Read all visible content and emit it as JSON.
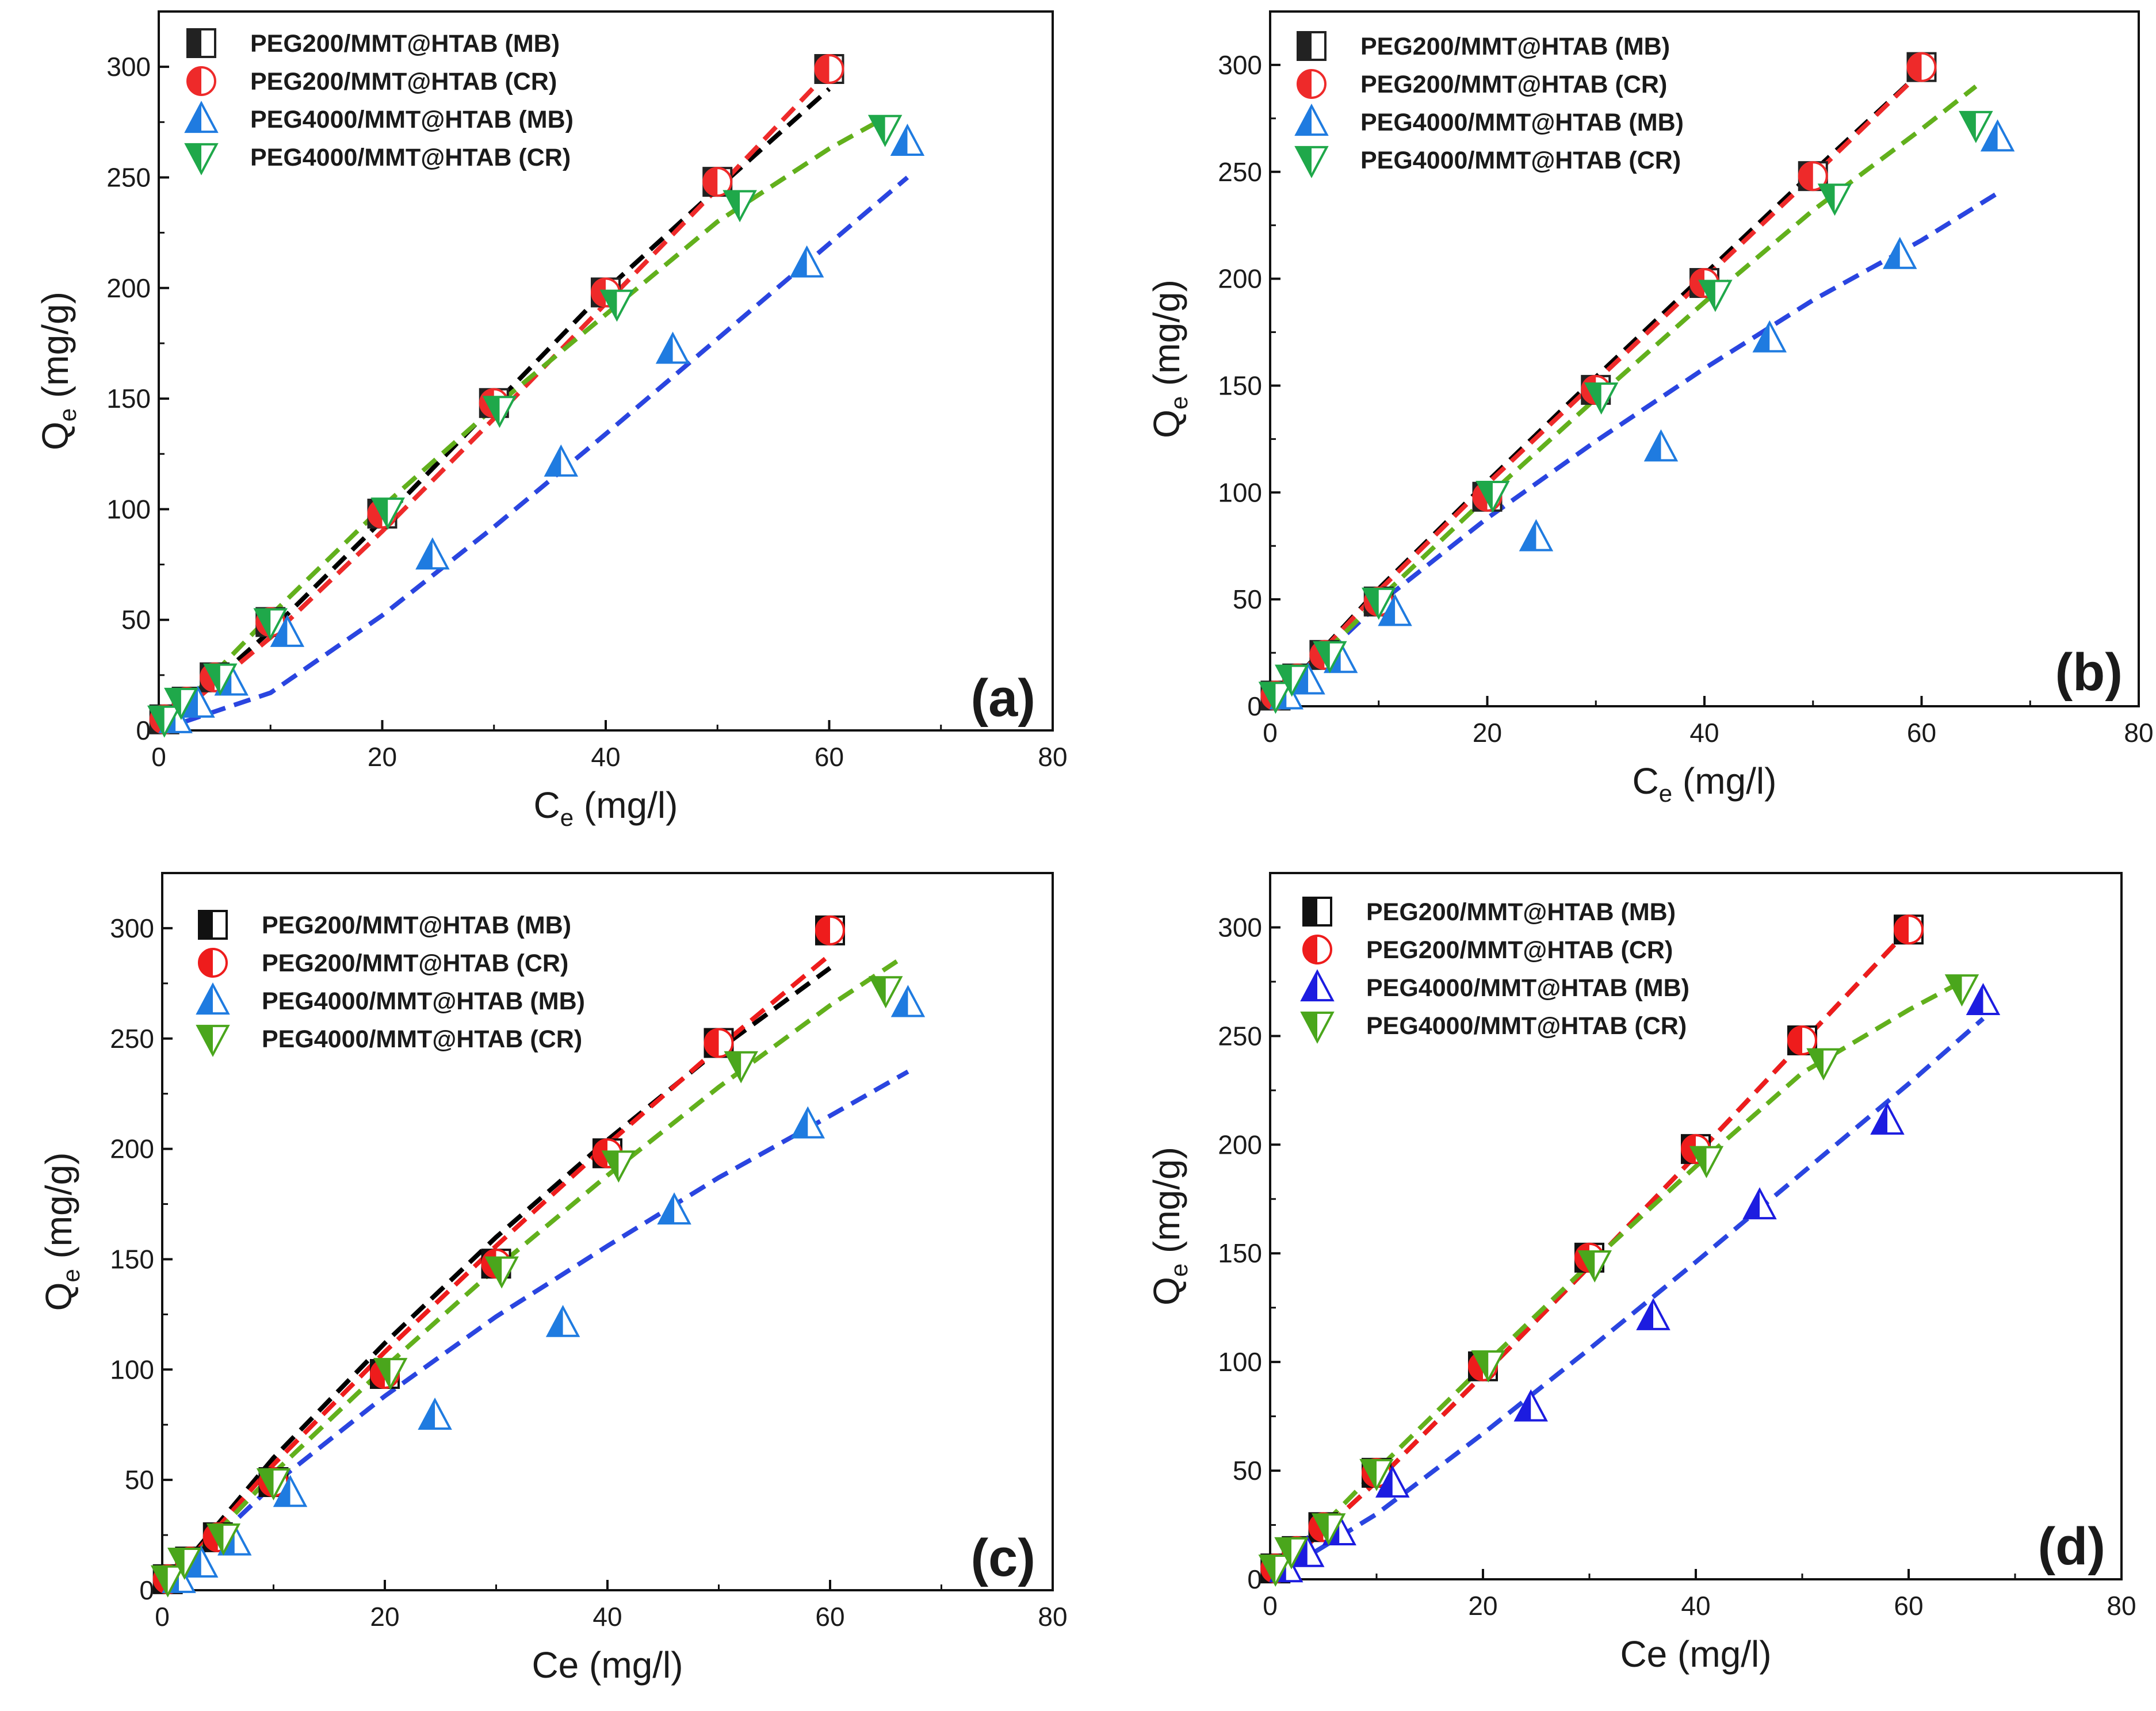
{
  "chart_data": [
    {
      "type": "scatter",
      "panel_label": "(a)",
      "xlabel": "C",
      "xlabel_sub": "e",
      "xlabel_unit": " (mg/l)",
      "ylabel": "Q",
      "ylabel_sub": "e",
      "ylabel_unit": " (mg/g)",
      "xlim": [
        0,
        80
      ],
      "ylim": [
        0,
        325
      ],
      "xticks": [
        "0",
        "20",
        "40",
        "60",
        "80"
      ],
      "yticks": [
        "0",
        "50",
        "100",
        "150",
        "200",
        "250",
        "300"
      ],
      "series": [
        {
          "name": "PEG200/MMT@HTAB (MB)",
          "marker": "square-half",
          "color": "#222222",
          "line_color": "#000000",
          "x": [
            0.5,
            2.5,
            5,
            10,
            20,
            30,
            40,
            50,
            60
          ],
          "y": [
            5,
            13,
            24,
            49,
            98,
            148,
            198,
            248,
            299
          ],
          "fit": [
            [
              0,
              0
            ],
            [
              10,
              45
            ],
            [
              20,
              95
            ],
            [
              30,
              147
            ],
            [
              40,
              199
            ],
            [
              50,
              245
            ],
            [
              60,
              290
            ]
          ]
        },
        {
          "name": "PEG200/MMT@HTAB (CR)",
          "marker": "circle-half",
          "color": "#ee2a2a",
          "line_color": "#ee2a2a",
          "x": [
            0.5,
            2.5,
            5,
            10,
            20,
            30,
            40,
            50,
            60
          ],
          "y": [
            5,
            13,
            24,
            49,
            98,
            148,
            198,
            248,
            299
          ],
          "fit": [
            [
              0,
              0
            ],
            [
              10,
              42
            ],
            [
              20,
              90
            ],
            [
              30,
              141
            ],
            [
              40,
              193
            ],
            [
              50,
              245
            ],
            [
              60,
              298
            ]
          ]
        },
        {
          "name": "PEG4000/MMT@HTAB (MB)",
          "marker": "triangle-up-half",
          "color": "#1f7be0",
          "line_color": "#2a45e0",
          "x": [
            1.5,
            3.5,
            6.5,
            11.5,
            24.5,
            36,
            46,
            58,
            67
          ],
          "y": [
            5,
            12,
            22,
            44,
            79,
            121,
            172,
            211,
            266
          ],
          "fit": [
            [
              0,
              0
            ],
            [
              10,
              17
            ],
            [
              20,
              52
            ],
            [
              30,
              92
            ],
            [
              40,
              134
            ],
            [
              50,
              177
            ],
            [
              60,
              220
            ],
            [
              67,
              250
            ]
          ]
        },
        {
          "name": "PEG4000/MMT@HTAB (CR)",
          "marker": "triangle-down-half",
          "color": "#1fa84a",
          "line_color": "#62b01c",
          "x": [
            0.5,
            2,
            5.5,
            10,
            20.5,
            30.5,
            41,
            52,
            65
          ],
          "y": [
            5,
            13,
            24,
            49,
            99,
            145,
            193,
            238,
            272
          ],
          "fit": [
            [
              0,
              0
            ],
            [
              10,
              52
            ],
            [
              20,
              101
            ],
            [
              30,
              146
            ],
            [
              40,
              188
            ],
            [
              50,
              230
            ],
            [
              60,
              263
            ],
            [
              65,
              277
            ]
          ]
        }
      ]
    },
    {
      "type": "scatter",
      "panel_label": "(b)",
      "xlabel": "C",
      "xlabel_sub": "e",
      "xlabel_unit": " (mg/l)",
      "ylabel": "Q",
      "ylabel_sub": "e",
      "ylabel_unit": " (mg/g)",
      "xlim": [
        0,
        80
      ],
      "ylim": [
        0,
        325
      ],
      "xticks": [
        "0",
        "20",
        "40",
        "60",
        "80"
      ],
      "yticks": [
        "0",
        "50",
        "100",
        "150",
        "200",
        "250",
        "300"
      ],
      "series": [
        {
          "name": "PEG200/MMT@HTAB (MB)",
          "marker": "square-half",
          "color": "#222222",
          "line_color": "#000000",
          "x": [
            0.5,
            2.5,
            5,
            10,
            20,
            30,
            40,
            50,
            60
          ],
          "y": [
            5,
            13,
            24,
            49,
            98,
            148,
            198,
            248,
            299
          ],
          "fit": [
            [
              0,
              0
            ],
            [
              10,
              55
            ],
            [
              20,
              105
            ],
            [
              30,
              154
            ],
            [
              40,
              202
            ],
            [
              50,
              250
            ],
            [
              60,
              297
            ]
          ]
        },
        {
          "name": "PEG200/MMT@HTAB (CR)",
          "marker": "circle-half",
          "color": "#ee2a2a",
          "line_color": "#ee2a2a",
          "x": [
            0.5,
            2.5,
            5,
            10,
            20,
            30,
            40,
            50,
            60
          ],
          "y": [
            5,
            13,
            24,
            49,
            98,
            148,
            198,
            248,
            299
          ],
          "fit": [
            [
              0,
              0
            ],
            [
              10,
              54
            ],
            [
              20,
              104
            ],
            [
              30,
              152
            ],
            [
              40,
              200
            ],
            [
              50,
              248
            ],
            [
              60,
              297
            ]
          ]
        },
        {
          "name": "PEG4000/MMT@HTAB (MB)",
          "marker": "triangle-up-half",
          "color": "#1f7be0",
          "line_color": "#2a45e0",
          "x": [
            1.5,
            3.5,
            6.5,
            11.5,
            24.5,
            36,
            46,
            58,
            67
          ],
          "y": [
            5,
            12,
            22,
            44,
            79,
            121,
            172,
            211,
            266
          ],
          "fit": [
            [
              0,
              0
            ],
            [
              10,
              48
            ],
            [
              20,
              88
            ],
            [
              30,
              124
            ],
            [
              40,
              158
            ],
            [
              50,
              190
            ],
            [
              60,
              218
            ],
            [
              67,
              240
            ]
          ]
        },
        {
          "name": "PEG4000/MMT@HTAB (CR)",
          "marker": "triangle-down-half",
          "color": "#1fa84a",
          "line_color": "#62b01c",
          "x": [
            0.5,
            2,
            5.5,
            10,
            20.5,
            30.5,
            41,
            52,
            65
          ],
          "y": [
            5,
            13,
            24,
            49,
            99,
            145,
            193,
            238,
            272
          ],
          "fit": [
            [
              0,
              0
            ],
            [
              10,
              50
            ],
            [
              20,
              98
            ],
            [
              30,
              144
            ],
            [
              40,
              189
            ],
            [
              50,
              232
            ],
            [
              60,
              270
            ],
            [
              65,
              290
            ]
          ]
        }
      ]
    },
    {
      "type": "scatter",
      "panel_label": "(c)",
      "xlabel": "Ce",
      "xlabel_sub": "",
      "xlabel_unit": " (mg/l)",
      "ylabel": "Q",
      "ylabel_sub": "e",
      "ylabel_unit": " (mg/g)",
      "xlim": [
        0,
        80
      ],
      "ylim": [
        0,
        325
      ],
      "xticks": [
        "0",
        "20",
        "40",
        "60",
        "80"
      ],
      "yticks": [
        "0",
        "50",
        "100",
        "150",
        "200",
        "250",
        "300"
      ],
      "series": [
        {
          "name": "PEG200/MMT@HTAB (MB)",
          "marker": "square-half",
          "color": "#111111",
          "line_color": "#000000",
          "x": [
            0.5,
            2.5,
            5,
            10,
            20,
            30,
            40,
            50,
            60
          ],
          "y": [
            5,
            13,
            24,
            49,
            98,
            148,
            198,
            248,
            299
          ],
          "fit": [
            [
              0,
              0
            ],
            [
              10,
              60
            ],
            [
              20,
              112
            ],
            [
              30,
              160
            ],
            [
              40,
              204
            ],
            [
              50,
              245
            ],
            [
              60,
              282
            ]
          ]
        },
        {
          "name": "PEG200/MMT@HTAB (CR)",
          "marker": "circle-half",
          "color": "#ee1c1c",
          "line_color": "#ee1c1c",
          "x": [
            0.5,
            2.5,
            5,
            10,
            20,
            30,
            40,
            50,
            60
          ],
          "y": [
            5,
            13,
            24,
            49,
            98,
            148,
            198,
            248,
            299
          ],
          "fit": [
            [
              0,
              0
            ],
            [
              10,
              57
            ],
            [
              20,
              108
            ],
            [
              30,
              156
            ],
            [
              40,
              202
            ],
            [
              50,
              246
            ],
            [
              60,
              288
            ]
          ]
        },
        {
          "name": "PEG4000/MMT@HTAB (MB)",
          "marker": "triangle-up-half",
          "color": "#1f7be0",
          "line_color": "#2a45e0",
          "x": [
            1.5,
            3.5,
            6.5,
            11.5,
            24.5,
            36,
            46,
            58,
            67
          ],
          "y": [
            5,
            12,
            22,
            44,
            79,
            121,
            172,
            211,
            266
          ],
          "fit": [
            [
              0,
              0
            ],
            [
              10,
              48
            ],
            [
              20,
              88
            ],
            [
              30,
              124
            ],
            [
              40,
              156
            ],
            [
              50,
              187
            ],
            [
              60,
              215
            ],
            [
              67,
              235
            ]
          ]
        },
        {
          "name": "PEG4000/MMT@HTAB (CR)",
          "marker": "triangle-down-half",
          "color": "#4aa61c",
          "line_color": "#62b01c",
          "x": [
            0.5,
            2,
            5.5,
            10,
            20.5,
            30.5,
            41,
            52,
            65
          ],
          "y": [
            5,
            13,
            24,
            49,
            99,
            145,
            193,
            238,
            272
          ],
          "fit": [
            [
              0,
              0
            ],
            [
              10,
              53
            ],
            [
              20,
              101
            ],
            [
              30,
              146
            ],
            [
              40,
              188
            ],
            [
              50,
              228
            ],
            [
              60,
              265
            ],
            [
              66,
              285
            ]
          ]
        }
      ]
    },
    {
      "type": "scatter",
      "panel_label": "(d)",
      "xlabel": "Ce",
      "xlabel_sub": "",
      "xlabel_unit": " (mg/l)",
      "ylabel": "Q",
      "ylabel_sub": "e",
      "ylabel_unit": " (mg/g)",
      "xlim": [
        0,
        80
      ],
      "ylim": [
        0,
        325
      ],
      "xticks": [
        "0",
        "20",
        "40",
        "60",
        "80"
      ],
      "yticks": [
        "0",
        "50",
        "100",
        "150",
        "200",
        "250",
        "300"
      ],
      "series": [
        {
          "name": "PEG200/MMT@HTAB (MB)",
          "marker": "square-half",
          "color": "#111111",
          "line_color": "#000000",
          "x": [
            0.5,
            2.5,
            5,
            10,
            20,
            30,
            40,
            50,
            60
          ],
          "y": [
            5,
            13,
            24,
            49,
            98,
            148,
            198,
            248,
            299
          ],
          "fit": [
            [
              0,
              0
            ],
            [
              10,
              45
            ],
            [
              20,
              94
            ],
            [
              30,
              144
            ],
            [
              40,
              195
            ],
            [
              50,
              247
            ],
            [
              60,
              299
            ]
          ]
        },
        {
          "name": "PEG200/MMT@HTAB (CR)",
          "marker": "circle-half",
          "color": "#ee1c1c",
          "line_color": "#ee1c1c",
          "x": [
            0.5,
            2.5,
            5,
            10,
            20,
            30,
            40,
            50,
            60
          ],
          "y": [
            5,
            13,
            24,
            49,
            98,
            148,
            198,
            248,
            299
          ],
          "fit": [
            [
              0,
              0
            ],
            [
              10,
              45
            ],
            [
              20,
              94
            ],
            [
              30,
              144
            ],
            [
              40,
              195
            ],
            [
              50,
              247
            ],
            [
              60,
              299
            ]
          ]
        },
        {
          "name": "PEG4000/MMT@HTAB (MB)",
          "marker": "triangle-up-half",
          "color": "#1c1ce0",
          "line_color": "#2a45e0",
          "x": [
            1.5,
            3.5,
            6.5,
            11.5,
            24.5,
            36,
            46,
            58,
            67
          ],
          "y": [
            5,
            12,
            22,
            44,
            79,
            121,
            172,
            211,
            266
          ],
          "fit": [
            [
              0,
              0
            ],
            [
              10,
              30
            ],
            [
              20,
              67
            ],
            [
              30,
              106
            ],
            [
              40,
              146
            ],
            [
              50,
              187
            ],
            [
              60,
              228
            ],
            [
              67,
              258
            ]
          ]
        },
        {
          "name": "PEG4000/MMT@HTAB (CR)",
          "marker": "triangle-down-half",
          "color": "#4aa61c",
          "line_color": "#62b01c",
          "x": [
            0.5,
            2,
            5.5,
            10,
            20.5,
            30.5,
            41,
            52,
            65
          ],
          "y": [
            5,
            13,
            24,
            49,
            99,
            145,
            193,
            238,
            272
          ],
          "fit": [
            [
              0,
              0
            ],
            [
              10,
              50
            ],
            [
              20,
              98
            ],
            [
              30,
              145
            ],
            [
              40,
              190
            ],
            [
              50,
              233
            ],
            [
              60,
              262
            ],
            [
              65,
              275
            ]
          ]
        }
      ]
    }
  ]
}
